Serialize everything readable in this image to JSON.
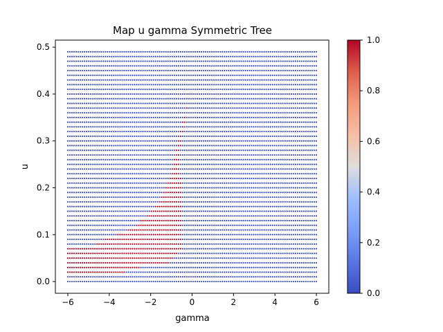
{
  "chart_data": {
    "type": "scatter",
    "title": "Map u gamma Symmetric Tree",
    "xlabel": "gamma",
    "ylabel": "u",
    "xlim": [
      -6.6,
      6.6
    ],
    "ylim": [
      -0.025,
      0.515
    ],
    "x_ticks": [
      -6,
      -4,
      -2,
      0,
      2,
      4,
      6
    ],
    "y_ticks": [
      0.0,
      0.1,
      0.2,
      0.3,
      0.4,
      0.5
    ],
    "x_tick_labels": [
      "−6",
      "−4",
      "−2",
      "0",
      "2",
      "4",
      "6"
    ],
    "y_tick_labels": [
      "0.0",
      "0.1",
      "0.2",
      "0.3",
      "0.4",
      "0.5"
    ],
    "grid": {
      "x_start": -6.0,
      "x_end": 6.0,
      "x_count": 120,
      "u_start": 0.0,
      "u_end": 0.49,
      "u_count": 50
    },
    "value_range": [
      0.0,
      1.0
    ],
    "value_description": "binary; 1 inside the region bounded by the listed gamma limits for each u band, 0 elsewhere",
    "region_value_1": [
      {
        "u": [
          0.02,
          0.02
        ],
        "gamma": [
          -6.0,
          -3.2
        ]
      },
      {
        "u": [
          0.03,
          0.03
        ],
        "gamma": [
          -6.0,
          -2.5
        ]
      },
      {
        "u": [
          0.04,
          0.04
        ],
        "gamma": [
          -6.0,
          -1.1
        ]
      },
      {
        "u": [
          0.05,
          0.05
        ],
        "gamma": [
          -6.0,
          -0.9
        ]
      },
      {
        "u": [
          0.06,
          0.06
        ],
        "gamma": [
          -6.0,
          -0.75
        ]
      },
      {
        "u": [
          0.07,
          0.07
        ],
        "gamma": [
          -6.0,
          -0.55
        ]
      },
      {
        "u": [
          0.08,
          0.08
        ],
        "gamma": [
          -4.6,
          -0.5
        ]
      },
      {
        "u": [
          0.09,
          0.09
        ],
        "gamma": [
          -4.2,
          -0.5
        ]
      },
      {
        "u": [
          0.1,
          0.1
        ],
        "gamma": [
          -3.6,
          -0.5
        ]
      },
      {
        "u": [
          0.11,
          0.11
        ],
        "gamma": [
          -3.1,
          -0.5
        ]
      },
      {
        "u": [
          0.12,
          0.12
        ],
        "gamma": [
          -2.7,
          -0.5
        ]
      },
      {
        "u": [
          0.13,
          0.13
        ],
        "gamma": [
          -2.5,
          -0.5
        ]
      },
      {
        "u": [
          0.14,
          0.14
        ],
        "gamma": [
          -2.2,
          -0.5
        ]
      },
      {
        "u": [
          0.15,
          0.15
        ],
        "gamma": [
          -2.0,
          -0.5
        ]
      },
      {
        "u": [
          0.16,
          0.16
        ],
        "gamma": [
          -1.8,
          -0.5
        ]
      },
      {
        "u": [
          0.17,
          0.17
        ],
        "gamma": [
          -1.6,
          -0.5
        ]
      },
      {
        "u": [
          0.18,
          0.18
        ],
        "gamma": [
          -1.5,
          -0.5
        ]
      },
      {
        "u": [
          0.19,
          0.19
        ],
        "gamma": [
          -1.4,
          -0.5
        ]
      },
      {
        "u": [
          0.2,
          0.2
        ],
        "gamma": [
          -1.3,
          -0.5
        ]
      },
      {
        "u": [
          0.21,
          0.21
        ],
        "gamma": [
          -1.2,
          -0.5
        ]
      },
      {
        "u": [
          0.22,
          0.22
        ],
        "gamma": [
          -1.1,
          -0.5
        ]
      },
      {
        "u": [
          0.23,
          0.23
        ],
        "gamma": [
          -1.0,
          -0.6
        ]
      },
      {
        "u": [
          0.24,
          0.24
        ],
        "gamma": [
          -1.0,
          -0.6
        ]
      },
      {
        "u": [
          0.25,
          0.25
        ],
        "gamma": [
          -0.9,
          -0.6
        ]
      },
      {
        "u": [
          0.26,
          0.26
        ],
        "gamma": [
          -0.9,
          -0.6
        ]
      },
      {
        "u": [
          0.27,
          0.27
        ],
        "gamma": [
          -0.8,
          -0.6
        ]
      },
      {
        "u": [
          0.28,
          0.28
        ],
        "gamma": [
          -0.8,
          -0.6
        ]
      },
      {
        "u": [
          0.29,
          0.29
        ],
        "gamma": [
          -0.7,
          -0.5
        ]
      },
      {
        "u": [
          0.3,
          0.3
        ],
        "gamma": [
          -0.7,
          -0.5
        ]
      },
      {
        "u": [
          0.31,
          0.31
        ],
        "gamma": [
          -0.6,
          -0.5
        ]
      },
      {
        "u": [
          0.32,
          0.32
        ],
        "gamma": [
          -0.6,
          -0.4
        ]
      },
      {
        "u": [
          0.33,
          0.33
        ],
        "gamma": [
          -0.5,
          -0.4
        ]
      },
      {
        "u": [
          0.34,
          0.34
        ],
        "gamma": [
          -0.5,
          -0.3
        ]
      },
      {
        "u": [
          0.35,
          0.35
        ],
        "gamma": [
          -0.4,
          -0.3
        ]
      },
      {
        "u": [
          0.36,
          0.36
        ],
        "gamma": [
          -0.3,
          -0.3
        ]
      },
      {
        "u": [
          0.37,
          0.37
        ],
        "gamma": [
          -0.3,
          -0.2
        ]
      },
      {
        "u": [
          0.38,
          0.38
        ],
        "gamma": [
          -0.2,
          -0.2
        ]
      }
    ],
    "colormap": "coolwarm",
    "colors": {
      "low": "#3b4cc0",
      "mid": "#dddddd",
      "high": "#b40426"
    },
    "colorbar": {
      "position": "right",
      "range": [
        0.0,
        1.0
      ],
      "ticks": [
        0.0,
        0.2,
        0.4,
        0.6,
        0.8,
        1.0
      ],
      "tick_labels": [
        "0.0",
        "0.2",
        "0.4",
        "0.6",
        "0.8",
        "1.0"
      ]
    }
  }
}
